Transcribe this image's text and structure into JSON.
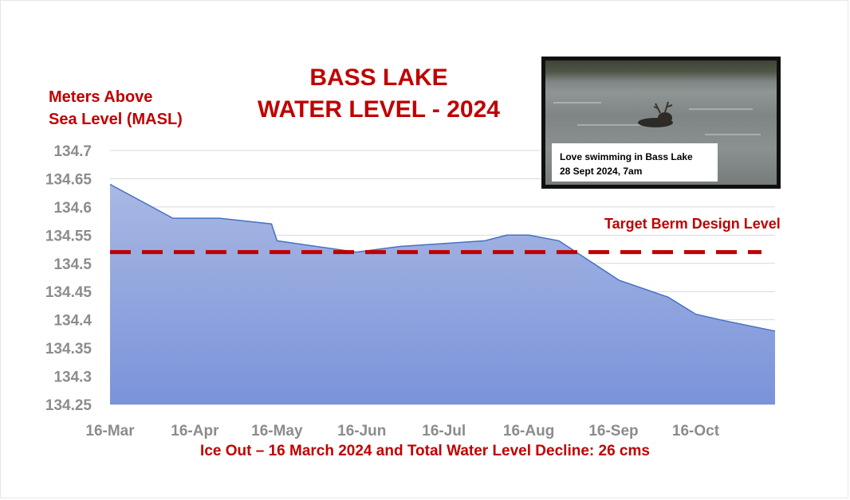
{
  "chart_data": {
    "type": "area",
    "title_lines": [
      "BASS LAKE",
      "WATER LEVEL - 2024"
    ],
    "ylabel_lines": [
      "Meters Above",
      "Sea Level (MASL)"
    ],
    "xlabel": "",
    "x_tick_labels": [
      "16-Mar",
      "16-Apr",
      "16-May",
      "16-Jun",
      "16-Jul",
      "16-Aug",
      "16-Sep",
      "16-Oct"
    ],
    "x_ticks": [
      "2024-03-16",
      "2024-04-16",
      "2024-05-16",
      "2024-06-16",
      "2024-07-16",
      "2024-08-16",
      "2024-09-16",
      "2024-10-16"
    ],
    "xlim": [
      "2024-03-16",
      "2024-11-14"
    ],
    "ylim": [
      134.25,
      134.7
    ],
    "y_ticks": [
      "134.25",
      "134.3",
      "134.35",
      "134.4",
      "134.45",
      "134.5",
      "134.55",
      "134.6",
      "134.65",
      "134.7"
    ],
    "grid": "horizontal",
    "series": [
      {
        "x": [
          "2024-03-16",
          "2024-04-08",
          "2024-04-25",
          "2024-05-14",
          "2024-05-16",
          "2024-06-14",
          "2024-06-30",
          "2024-07-31",
          "2024-08-08",
          "2024-08-16",
          "2024-08-27",
          "2024-09-18",
          "2024-10-06",
          "2024-10-16",
          "2024-10-25",
          "2024-11-14"
        ],
        "y": [
          134.64,
          134.58,
          134.58,
          134.57,
          134.54,
          134.52,
          134.53,
          134.54,
          134.55,
          134.55,
          134.54,
          134.47,
          134.44,
          134.41,
          134.4,
          134.38
        ],
        "color": "#8fa6df"
      }
    ],
    "reference_line": {
      "y": 134.52,
      "label": "Target Berm Design Level",
      "color": "#c00000",
      "style": "dashed"
    },
    "annotations": [
      "Ice Out – 16 March 2024 and Total Water Level Decline: 26 cms"
    ]
  },
  "photo": {
    "caption_line1": "Love swimming in Bass Lake",
    "caption_line2": "28 Sept 2024,  7am"
  },
  "colors": {
    "accent": "#c00000",
    "area_top": "#a7b6e2",
    "area_bottom": "#7791d9",
    "area_stroke": "#4472c4",
    "grid": "#d9d9d9",
    "tick_text": "#8c8c8c"
  }
}
